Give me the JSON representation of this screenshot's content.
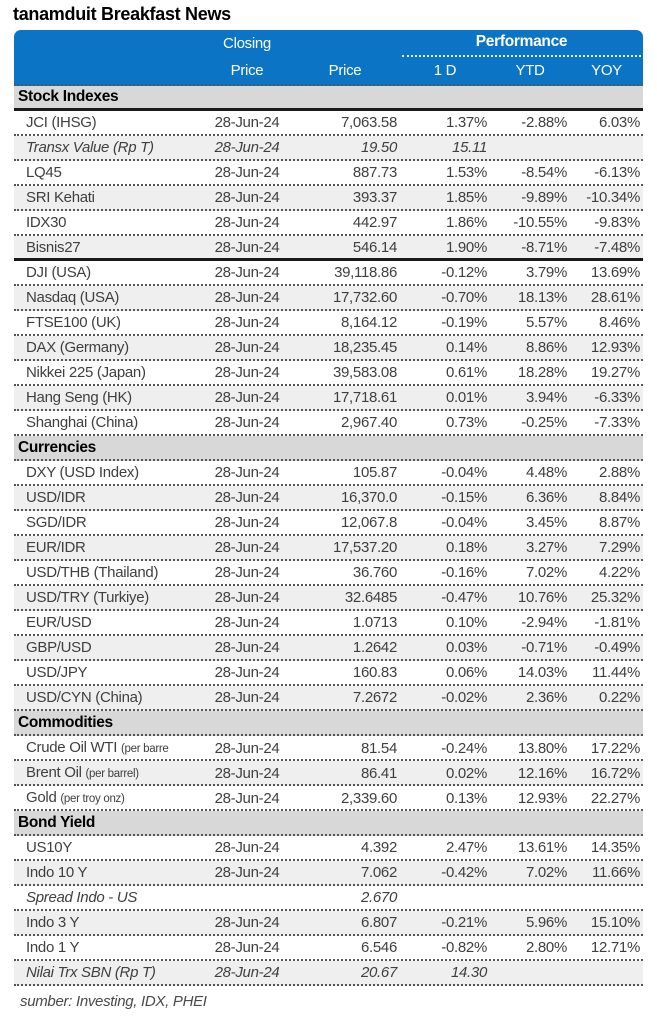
{
  "title": "tanamduit Breakfast News",
  "colors": {
    "header_blue": "#0b74c4",
    "section_gray": "#d8d8d8",
    "stripe_gray": "#efefef"
  },
  "header": {
    "closing_line1": "Closing",
    "closing_line2": "Price",
    "price": "Price",
    "performance": "Performance",
    "d1": "1 D",
    "ytd": "YTD",
    "yoy": "YOY"
  },
  "sections": [
    {
      "name": "Stock Indexes",
      "solid_bottom": true,
      "rows": [
        {
          "label": "JCI (IHSG)",
          "date": "28-Jun-24",
          "price": "7,063.58",
          "d1": "1.37%",
          "ytd": "-2.88%",
          "yoy": "6.03%"
        },
        {
          "label": "Transx Value (Rp T)",
          "date": "28-Jun-24",
          "price": "19.50",
          "d1": "15.11",
          "ytd": "",
          "yoy": "",
          "italic": true
        },
        {
          "label": "LQ45",
          "date": "28-Jun-24",
          "price": "887.73",
          "d1": "1.53%",
          "ytd": "-8.54%",
          "yoy": "-6.13%"
        },
        {
          "label": "SRI Kehati",
          "date": "28-Jun-24",
          "price": "393.37",
          "d1": "1.85%",
          "ytd": "-9.89%",
          "yoy": "-10.34%"
        },
        {
          "label": "IDX30",
          "date": "28-Jun-24",
          "price": "442.97",
          "d1": "1.86%",
          "ytd": "-10.55%",
          "yoy": "-9.83%"
        },
        {
          "label": "Bisnis27",
          "date": "28-Jun-24",
          "price": "546.14",
          "d1": "1.90%",
          "ytd": "-8.71%",
          "yoy": "-7.48%",
          "divider_after": true
        },
        {
          "label": "DJI (USA)",
          "date": "28-Jun-24",
          "price": "39,118.86",
          "d1": "-0.12%",
          "ytd": "3.79%",
          "yoy": "13.69%"
        },
        {
          "label": "Nasdaq (USA)",
          "date": "28-Jun-24",
          "price": "17,732.60",
          "d1": "-0.70%",
          "ytd": "18.13%",
          "yoy": "28.61%"
        },
        {
          "label": "FTSE100 (UK)",
          "date": "28-Jun-24",
          "price": "8,164.12",
          "d1": "-0.19%",
          "ytd": "5.57%",
          "yoy": "8.46%"
        },
        {
          "label": "DAX (Germany)",
          "date": "28-Jun-24",
          "price": "18,235.45",
          "d1": "0.14%",
          "ytd": "8.86%",
          "yoy": "12.93%"
        },
        {
          "label": "Nikkei 225 (Japan)",
          "date": "28-Jun-24",
          "price": "39,583.08",
          "d1": "0.61%",
          "ytd": "18.28%",
          "yoy": "19.27%"
        },
        {
          "label": "Hang Seng (HK)",
          "date": "28-Jun-24",
          "price": "17,718.61",
          "d1": "0.01%",
          "ytd": "3.94%",
          "yoy": "-6.33%"
        },
        {
          "label": "Shanghai (China)",
          "date": "28-Jun-24",
          "price": "2,967.40",
          "d1": "0.73%",
          "ytd": "-0.25%",
          "yoy": "-7.33%"
        }
      ]
    },
    {
      "name": "Currencies",
      "rows": [
        {
          "label": "DXY (USD Index)",
          "date": "28-Jun-24",
          "price": "105.87",
          "d1": "-0.04%",
          "ytd": "4.48%",
          "yoy": "2.88%"
        },
        {
          "label": "USD/IDR",
          "date": "28-Jun-24",
          "price": "16,370.0",
          "d1": "-0.15%",
          "ytd": "6.36%",
          "yoy": "8.84%"
        },
        {
          "label": "SGD/IDR",
          "date": "28-Jun-24",
          "price": "12,067.8",
          "d1": "-0.04%",
          "ytd": "3.45%",
          "yoy": "8.87%"
        },
        {
          "label": "EUR/IDR",
          "date": "28-Jun-24",
          "price": "17,537.20",
          "d1": "0.18%",
          "ytd": "3.27%",
          "yoy": "7.29%"
        },
        {
          "label": "USD/THB (Thailand)",
          "date": "28-Jun-24",
          "price": "36.760",
          "d1": "-0.16%",
          "ytd": "7.02%",
          "yoy": "4.22%"
        },
        {
          "label": "USD/TRY (Turkiye)",
          "date": "28-Jun-24",
          "price": "32.6485",
          "d1": "-0.47%",
          "ytd": "10.76%",
          "yoy": "25.32%"
        },
        {
          "label": "EUR/USD",
          "date": "28-Jun-24",
          "price": "1.0713",
          "d1": "0.10%",
          "ytd": "-2.94%",
          "yoy": "-1.81%"
        },
        {
          "label": "GBP/USD",
          "date": "28-Jun-24",
          "price": "1.2642",
          "d1": "0.03%",
          "ytd": "-0.71%",
          "yoy": "-0.49%"
        },
        {
          "label": "USD/JPY",
          "date": "28-Jun-24",
          "price": "160.83",
          "d1": "0.06%",
          "ytd": "14.03%",
          "yoy": "11.44%"
        },
        {
          "label": "USD/CYN (China)",
          "date": "28-Jun-24",
          "price": "7.2672",
          "d1": "-0.02%",
          "ytd": "2.36%",
          "yoy": "0.22%"
        }
      ]
    },
    {
      "name": "Commodities",
      "rows": [
        {
          "label": "Crude Oil WTI ",
          "unit": "(per barre",
          "date": "28-Jun-24",
          "price": "81.54",
          "d1": "-0.24%",
          "ytd": "13.80%",
          "yoy": "17.22%"
        },
        {
          "label": "Brent Oil ",
          "unit": "(per barrel)",
          "date": "28-Jun-24",
          "price": "86.41",
          "d1": "0.02%",
          "ytd": "12.16%",
          "yoy": "16.72%"
        },
        {
          "label": "Gold ",
          "unit": "(per troy onz)",
          "date": "28-Jun-24",
          "price": "2,339.60",
          "d1": "0.13%",
          "ytd": "12.93%",
          "yoy": "22.27%"
        }
      ]
    },
    {
      "name": "Bond Yield",
      "rows": [
        {
          "label": "US10Y",
          "date": "28-Jun-24",
          "price": "4.392",
          "d1": "2.47%",
          "ytd": "13.61%",
          "yoy": "14.35%"
        },
        {
          "label": "Indo 10 Y",
          "date": "28-Jun-24",
          "price": "7.062",
          "d1": "-0.42%",
          "ytd": "7.02%",
          "yoy": "11.66%"
        },
        {
          "label": "Spread Indo - US",
          "date": "",
          "price": "2.670",
          "d1": "",
          "ytd": "",
          "yoy": "",
          "italic": true
        },
        {
          "label": "Indo 3 Y",
          "date": "28-Jun-24",
          "price": "6.807",
          "d1": "-0.21%",
          "ytd": "5.96%",
          "yoy": "15.10%"
        },
        {
          "label": "Indo 1 Y",
          "date": "28-Jun-24",
          "price": "6.546",
          "d1": "-0.82%",
          "ytd": "2.80%",
          "yoy": "12.71%"
        },
        {
          "label": "Nilai Trx SBN (Rp T)",
          "date": "28-Jun-24",
          "price": "20.67",
          "d1": "14.30",
          "ytd": "",
          "yoy": "",
          "italic": true
        }
      ]
    }
  ],
  "footer": "sumber: Investing, IDX, PHEI"
}
